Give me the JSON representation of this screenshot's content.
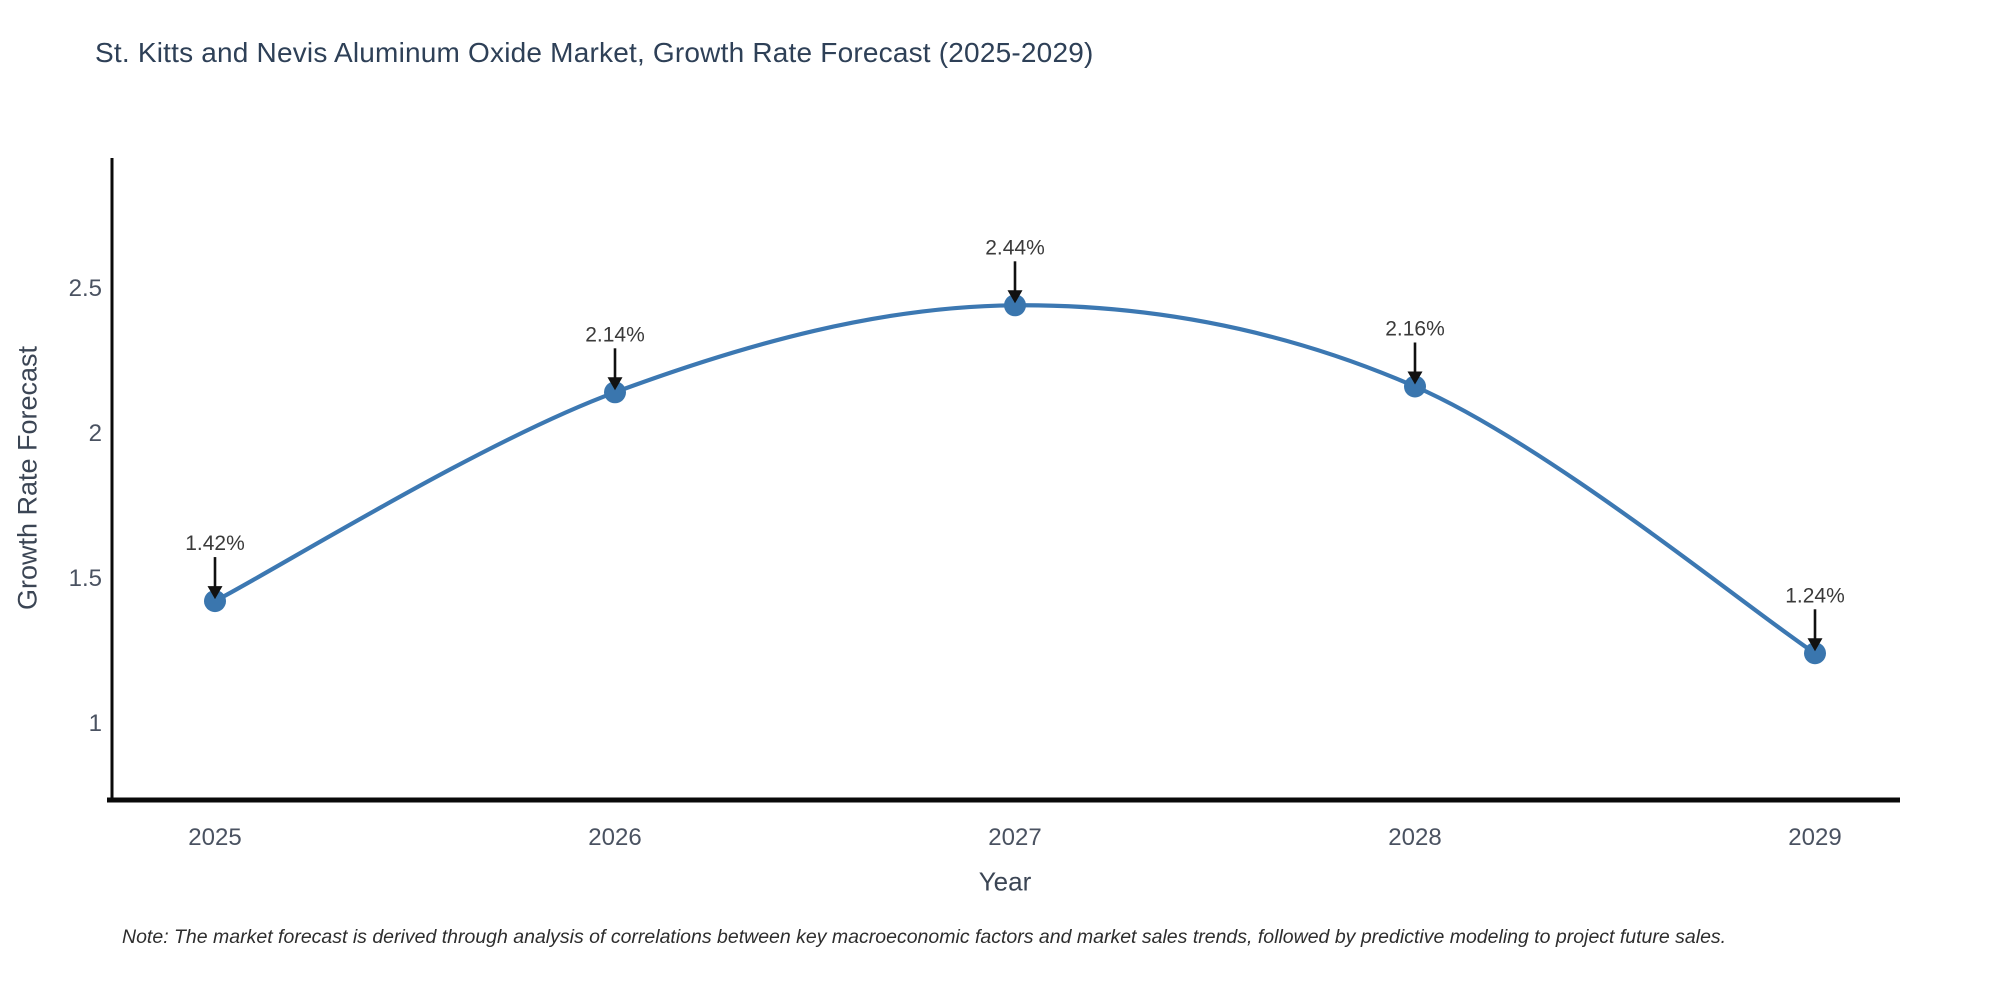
{
  "title": "St. Kitts and Nevis Aluminum Oxide Market, Growth Rate Forecast (2025-2029)",
  "note": "Note: The market forecast is derived through analysis of correlations between key macroeconomic factors and market sales trends, followed by predictive modeling to project future sales.",
  "chart_data": {
    "type": "line",
    "title": "St. Kitts and Nevis Aluminum Oxide Market, Growth Rate Forecast (2025-2029)",
    "categories": [
      "2025",
      "2026",
      "2027",
      "2028",
      "2029"
    ],
    "values": [
      1.42,
      2.14,
      2.44,
      2.16,
      1.24
    ],
    "point_labels": [
      "1.42%",
      "2.14%",
      "2.44%",
      "2.16%",
      "1.24%"
    ],
    "xlabel": "Year",
    "ylabel": "Growth Rate Forecast",
    "yticks": [
      1,
      1.5,
      2,
      2.5
    ],
    "ytick_labels": [
      "1",
      "1.5",
      "2",
      "2.5"
    ],
    "ylim": [
      0.734,
      2.948
    ],
    "grid": false,
    "legend": false,
    "marker_style": "circle",
    "annotation_style": "down-arrow",
    "colors": {
      "line": "#3c78b2",
      "marker": "#3a76ae",
      "arrow": "#111111",
      "axis": "#0a0a0a",
      "title_text": "#2e4057",
      "axis_title_text": "#3b4554",
      "tick_text": "#4a5261",
      "point_label_text": "#3a3a3a",
      "note_text": "#2d2d2d",
      "background": "#ffffff"
    }
  }
}
